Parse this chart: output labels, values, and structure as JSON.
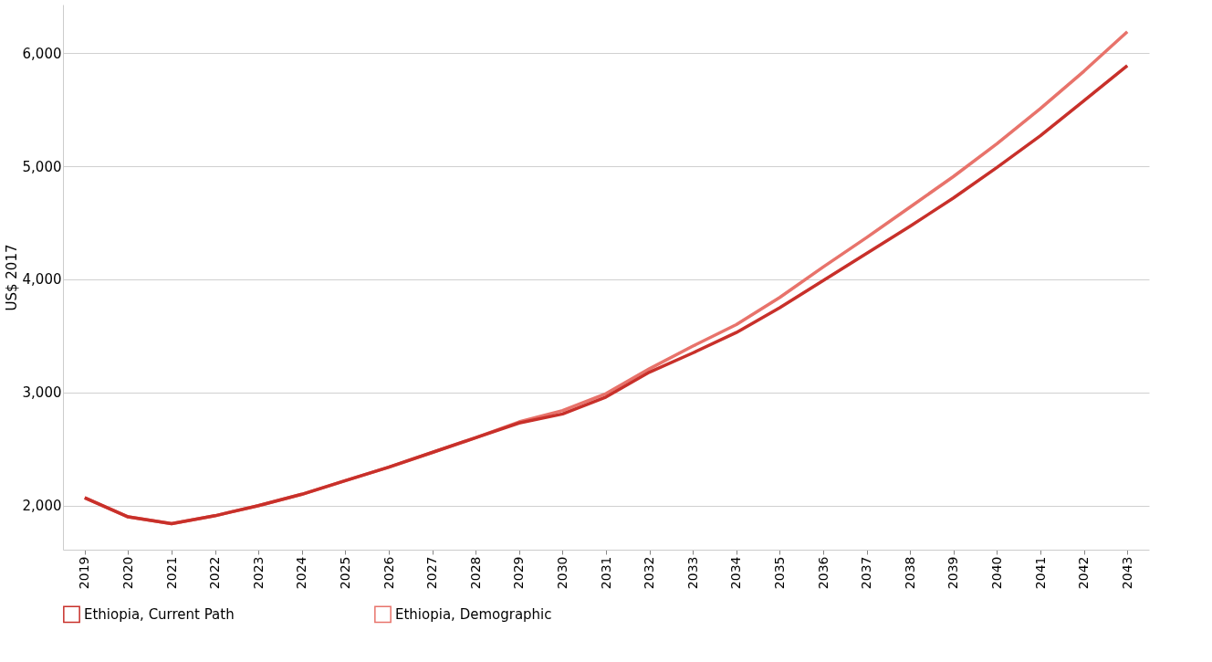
{
  "chart_data": {
    "type": "line",
    "ylabel": "US$ 2017",
    "categories": [
      "2019",
      "2020",
      "2021",
      "2022",
      "2023",
      "2024",
      "2025",
      "2026",
      "2027",
      "2028",
      "2029",
      "2030",
      "2031",
      "2032",
      "2033",
      "2034",
      "2035",
      "2036",
      "2037",
      "2038",
      "2039",
      "2040",
      "2041",
      "2042",
      "2043"
    ],
    "series": [
      {
        "name": "Ethiopia, Current Path",
        "color": "#c8302a",
        "values": [
          2070,
          1900,
          1840,
          1910,
          2000,
          2100,
          2220,
          2340,
          2470,
          2600,
          2730,
          2810,
          2960,
          3180,
          3350,
          3530,
          3750,
          3990,
          4230,
          4470,
          4720,
          4990,
          5270,
          5580,
          5890
        ]
      },
      {
        "name": "Ethiopia, Demographic",
        "color": "#e8736b",
        "values": [
          2070,
          1900,
          1840,
          1910,
          2000,
          2100,
          2220,
          2340,
          2470,
          2600,
          2740,
          2840,
          2990,
          3210,
          3410,
          3600,
          3840,
          4110,
          4370,
          4640,
          4910,
          5200,
          5510,
          5840,
          6190
        ]
      }
    ],
    "ylim": [
      1610,
      6430
    ],
    "yticks": [
      {
        "value": 2000,
        "label": "2,000"
      },
      {
        "value": 3000,
        "label": "3,000"
      },
      {
        "value": 4000,
        "label": "4,000"
      },
      {
        "value": 5000,
        "label": "5,000"
      },
      {
        "value": 6000,
        "label": "6,000"
      }
    ],
    "grid": "y",
    "legend": "bottom left",
    "line_style": "solid",
    "marker": "none"
  }
}
